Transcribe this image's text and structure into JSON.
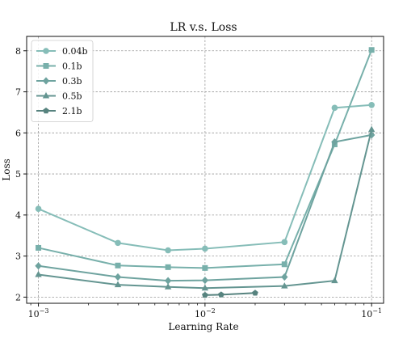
{
  "chart_data": {
    "type": "line",
    "title": "LR v.s. Loss",
    "xlabel": "Learning Rate",
    "ylabel": "Loss",
    "xscale": "log",
    "xlim": [
      0.00085,
      0.118
    ],
    "ylim": [
      1.85,
      8.35
    ],
    "grid": true,
    "legend_placement": "top-left",
    "x_ticks": [
      {
        "value": 0.001,
        "label": "10",
        "exp": "−3"
      },
      {
        "value": 0.01,
        "label": "10",
        "exp": "−2"
      },
      {
        "value": 0.1,
        "label": "10",
        "exp": "−1"
      }
    ],
    "y_ticks": [
      2,
      3,
      4,
      5,
      6,
      7,
      8
    ],
    "series": [
      {
        "name": "0.04b",
        "marker": "circle",
        "color": "#86bdb8",
        "points": [
          {
            "x": 0.001,
            "y": 4.15
          },
          {
            "x": 0.003,
            "y": 3.32
          },
          {
            "x": 0.006,
            "y": 3.14
          },
          {
            "x": 0.01,
            "y": 3.18
          },
          {
            "x": 0.03,
            "y": 3.34
          },
          {
            "x": 0.06,
            "y": 6.61
          },
          {
            "x": 0.1,
            "y": 6.68
          }
        ]
      },
      {
        "name": "0.1b",
        "marker": "square",
        "color": "#78b0ab",
        "points": [
          {
            "x": 0.001,
            "y": 3.2
          },
          {
            "x": 0.003,
            "y": 2.77
          },
          {
            "x": 0.006,
            "y": 2.73
          },
          {
            "x": 0.01,
            "y": 2.71
          },
          {
            "x": 0.03,
            "y": 2.8
          },
          {
            "x": 0.06,
            "y": 5.72
          },
          {
            "x": 0.1,
            "y": 8.02
          }
        ]
      },
      {
        "name": "0.3b",
        "marker": "diamond",
        "color": "#6ea39f",
        "points": [
          {
            "x": 0.001,
            "y": 2.76
          },
          {
            "x": 0.003,
            "y": 2.49
          },
          {
            "x": 0.006,
            "y": 2.4
          },
          {
            "x": 0.01,
            "y": 2.41
          },
          {
            "x": 0.03,
            "y": 2.49
          },
          {
            "x": 0.06,
            "y": 5.78
          },
          {
            "x": 0.1,
            "y": 5.95
          }
        ]
      },
      {
        "name": "0.5b",
        "marker": "triangle",
        "color": "#649591",
        "points": [
          {
            "x": 0.001,
            "y": 2.55
          },
          {
            "x": 0.003,
            "y": 2.3
          },
          {
            "x": 0.006,
            "y": 2.25
          },
          {
            "x": 0.01,
            "y": 2.22
          },
          {
            "x": 0.03,
            "y": 2.27
          },
          {
            "x": 0.06,
            "y": 2.4
          },
          {
            "x": 0.1,
            "y": 6.08
          }
        ]
      },
      {
        "name": "2.1b",
        "marker": "pentagon",
        "color": "#57837f",
        "points": [
          {
            "x": 0.01,
            "y": 2.05
          },
          {
            "x": 0.0125,
            "y": 2.06
          },
          {
            "x": 0.02,
            "y": 2.1
          }
        ]
      }
    ]
  }
}
